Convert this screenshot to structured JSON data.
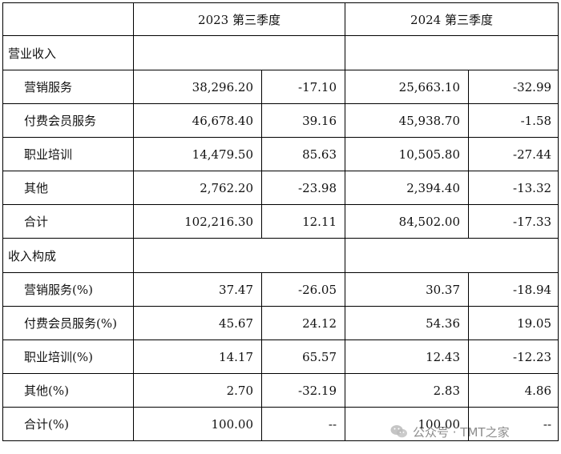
{
  "header": {
    "col_2023": "2023 第三季度",
    "col_2024": "2024 第三季度"
  },
  "sections": [
    {
      "title": "营业收入",
      "rows": [
        {
          "label": "营销服务",
          "v2023": "38,296.20",
          "c2023": "-17.10",
          "v2024": "25,663.10",
          "c2024": "-32.99"
        },
        {
          "label": "付费会员服务",
          "v2023": "46,678.40",
          "c2023": "39.16",
          "v2024": "45,938.70",
          "c2024": "-1.58"
        },
        {
          "label": "职业培训",
          "v2023": "14,479.50",
          "c2023": "85.63",
          "v2024": "10,505.80",
          "c2024": "-27.44"
        },
        {
          "label": "其他",
          "v2023": "2,762.20",
          "c2023": "-23.98",
          "v2024": "2,394.40",
          "c2024": "-13.32"
        },
        {
          "label": "合计",
          "v2023": "102,216.30",
          "c2023": "12.11",
          "v2024": "84,502.00",
          "c2024": "-17.33"
        }
      ]
    },
    {
      "title": "收入构成",
      "rows": [
        {
          "label": "营销服务(%)",
          "v2023": "37.47",
          "c2023": "-26.05",
          "v2024": "30.37",
          "c2024": "-18.94"
        },
        {
          "label": "付费会员服务(%)",
          "v2023": "45.67",
          "c2023": "24.12",
          "v2024": "54.36",
          "c2024": "19.05"
        },
        {
          "label": "职业培训(%)",
          "v2023": "14.17",
          "c2023": "65.57",
          "v2024": "12.43",
          "c2024": "-12.23"
        },
        {
          "label": "其他(%)",
          "v2023": "2.70",
          "c2023": "-32.19",
          "v2024": "2.83",
          "c2024": "4.86"
        },
        {
          "label": "合计(%)",
          "v2023": "100.00",
          "c2023": "--",
          "v2024": "100.00",
          "c2024": "--"
        }
      ]
    }
  ],
  "watermark": {
    "text": "公众号 · TMT之家",
    "icon": "wechat-icon"
  }
}
